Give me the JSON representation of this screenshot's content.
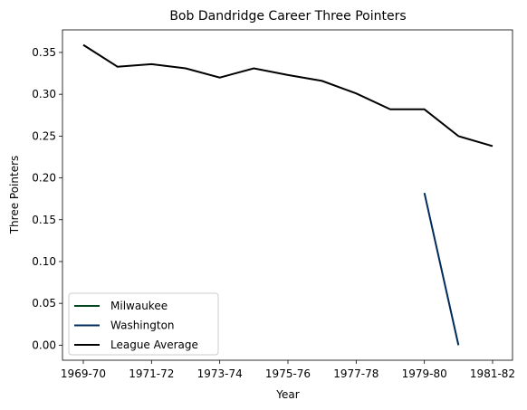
{
  "chart_data": {
    "type": "line",
    "title": "Bob Dandridge Career Three Pointers",
    "xlabel": "Year",
    "ylabel": "Three Pointers",
    "categories": [
      "1969-70",
      "1970-71",
      "1971-72",
      "1972-73",
      "1973-74",
      "1974-75",
      "1975-76",
      "1976-77",
      "1977-78",
      "1978-79",
      "1979-80",
      "1980-81",
      "1981-82"
    ],
    "x_tick_labels": [
      "1969-70",
      "1971-72",
      "1973-74",
      "1975-76",
      "1977-78",
      "1979-80",
      "1981-82"
    ],
    "y_ticks": [
      "0.00",
      "0.05",
      "0.10",
      "0.15",
      "0.20",
      "0.25",
      "0.30",
      "0.35"
    ],
    "ylim": [
      -0.018,
      0.377
    ],
    "legend_position": "lower-left",
    "series": [
      {
        "name": "Milwaukee",
        "color": "#00471B",
        "values": [
          null,
          null,
          null,
          null,
          null,
          null,
          null,
          null,
          null,
          null,
          null,
          null,
          null
        ]
      },
      {
        "name": "Washington",
        "color": "#002B5C",
        "values": [
          null,
          null,
          null,
          null,
          null,
          null,
          null,
          null,
          null,
          null,
          0.182,
          0.0,
          null
        ]
      },
      {
        "name": "League Average",
        "color": "#000000",
        "values": [
          0.359,
          0.333,
          0.336,
          0.331,
          0.32,
          0.331,
          0.323,
          0.316,
          0.301,
          0.282,
          0.282,
          0.25,
          0.238
        ]
      }
    ]
  }
}
